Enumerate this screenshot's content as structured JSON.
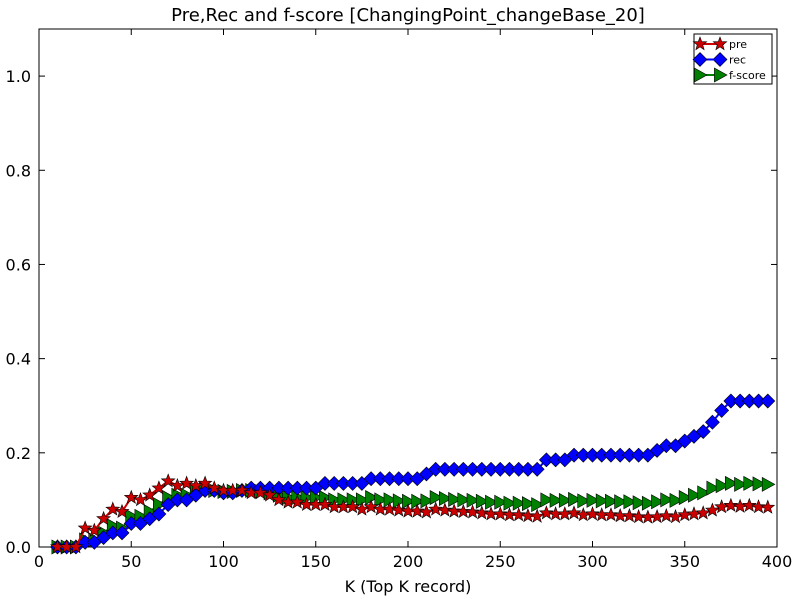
{
  "chart_data": {
    "type": "line",
    "title": "Pre,Rec and f-score [ChangingPoint_changeBase_20]",
    "xlabel": "K (Top K record)",
    "ylabel": "",
    "xlim": [
      0,
      400
    ],
    "ylim": [
      0.0,
      1.1
    ],
    "xticks": [
      "0",
      "50",
      "100",
      "150",
      "200",
      "250",
      "300",
      "350",
      "400"
    ],
    "yticks": [
      "0.0",
      "0.2",
      "0.4",
      "0.6",
      "0.8",
      "1.0"
    ],
    "grid": false,
    "legend_position": "top-right",
    "x": [
      10,
      15,
      20,
      25,
      30,
      35,
      40,
      45,
      50,
      55,
      60,
      65,
      70,
      75,
      80,
      85,
      90,
      95,
      100,
      105,
      110,
      115,
      120,
      125,
      130,
      135,
      140,
      145,
      150,
      155,
      160,
      165,
      170,
      175,
      180,
      185,
      190,
      195,
      200,
      205,
      210,
      215,
      220,
      225,
      230,
      235,
      240,
      245,
      250,
      255,
      260,
      265,
      270,
      275,
      280,
      285,
      290,
      295,
      300,
      305,
      310,
      315,
      320,
      325,
      330,
      335,
      340,
      345,
      350,
      355,
      360,
      365,
      370,
      375,
      380,
      385,
      390,
      395
    ],
    "series": [
      {
        "name": "pre",
        "color": "#cc0000",
        "marker": "star",
        "values": [
          0.0,
          0.0,
          0.0,
          0.04,
          0.035,
          0.06,
          0.08,
          0.075,
          0.105,
          0.1,
          0.11,
          0.125,
          0.14,
          0.13,
          0.135,
          0.13,
          0.135,
          0.125,
          0.12,
          0.12,
          0.12,
          0.115,
          0.115,
          0.11,
          0.1,
          0.095,
          0.095,
          0.09,
          0.09,
          0.09,
          0.085,
          0.085,
          0.085,
          0.08,
          0.085,
          0.08,
          0.08,
          0.078,
          0.076,
          0.076,
          0.074,
          0.08,
          0.078,
          0.076,
          0.075,
          0.074,
          0.072,
          0.07,
          0.07,
          0.068,
          0.068,
          0.066,
          0.065,
          0.072,
          0.07,
          0.07,
          0.072,
          0.068,
          0.07,
          0.068,
          0.068,
          0.066,
          0.066,
          0.064,
          0.063,
          0.064,
          0.066,
          0.064,
          0.068,
          0.07,
          0.072,
          0.078,
          0.085,
          0.088,
          0.086,
          0.088,
          0.085,
          0.084
        ]
      },
      {
        "name": "rec",
        "color": "#0000ff",
        "marker": "diamond",
        "values": [
          0.0,
          0.0,
          0.0,
          0.01,
          0.01,
          0.02,
          0.03,
          0.03,
          0.05,
          0.05,
          0.06,
          0.07,
          0.09,
          0.1,
          0.1,
          0.11,
          0.12,
          0.12,
          0.115,
          0.115,
          0.12,
          0.125,
          0.125,
          0.125,
          0.125,
          0.125,
          0.125,
          0.125,
          0.125,
          0.135,
          0.135,
          0.135,
          0.135,
          0.135,
          0.145,
          0.145,
          0.145,
          0.145,
          0.145,
          0.145,
          0.155,
          0.165,
          0.165,
          0.165,
          0.165,
          0.165,
          0.165,
          0.165,
          0.165,
          0.165,
          0.165,
          0.165,
          0.165,
          0.185,
          0.185,
          0.185,
          0.195,
          0.195,
          0.195,
          0.195,
          0.195,
          0.195,
          0.195,
          0.195,
          0.195,
          0.205,
          0.215,
          0.215,
          0.225,
          0.235,
          0.245,
          0.265,
          0.29,
          0.31,
          0.31,
          0.31,
          0.31,
          0.31
        ]
      },
      {
        "name": "f-score",
        "color": "#008000",
        "marker": "triangle-right",
        "values": [
          0.0,
          0.0,
          0.0,
          0.015,
          0.015,
          0.03,
          0.045,
          0.04,
          0.065,
          0.065,
          0.075,
          0.09,
          0.105,
          0.11,
          0.11,
          0.12,
          0.125,
          0.12,
          0.118,
          0.118,
          0.12,
          0.12,
          0.118,
          0.115,
          0.11,
          0.105,
          0.105,
          0.105,
          0.105,
          0.105,
          0.1,
          0.1,
          0.1,
          0.1,
          0.105,
          0.1,
          0.1,
          0.098,
          0.097,
          0.097,
          0.098,
          0.105,
          0.103,
          0.101,
          0.1,
          0.099,
          0.097,
          0.095,
          0.095,
          0.093,
          0.093,
          0.092,
          0.09,
          0.1,
          0.099,
          0.099,
          0.101,
          0.098,
          0.099,
          0.098,
          0.097,
          0.096,
          0.096,
          0.094,
          0.093,
          0.096,
          0.1,
          0.099,
          0.105,
          0.11,
          0.115,
          0.125,
          0.13,
          0.135,
          0.133,
          0.135,
          0.134,
          0.133
        ]
      }
    ]
  }
}
